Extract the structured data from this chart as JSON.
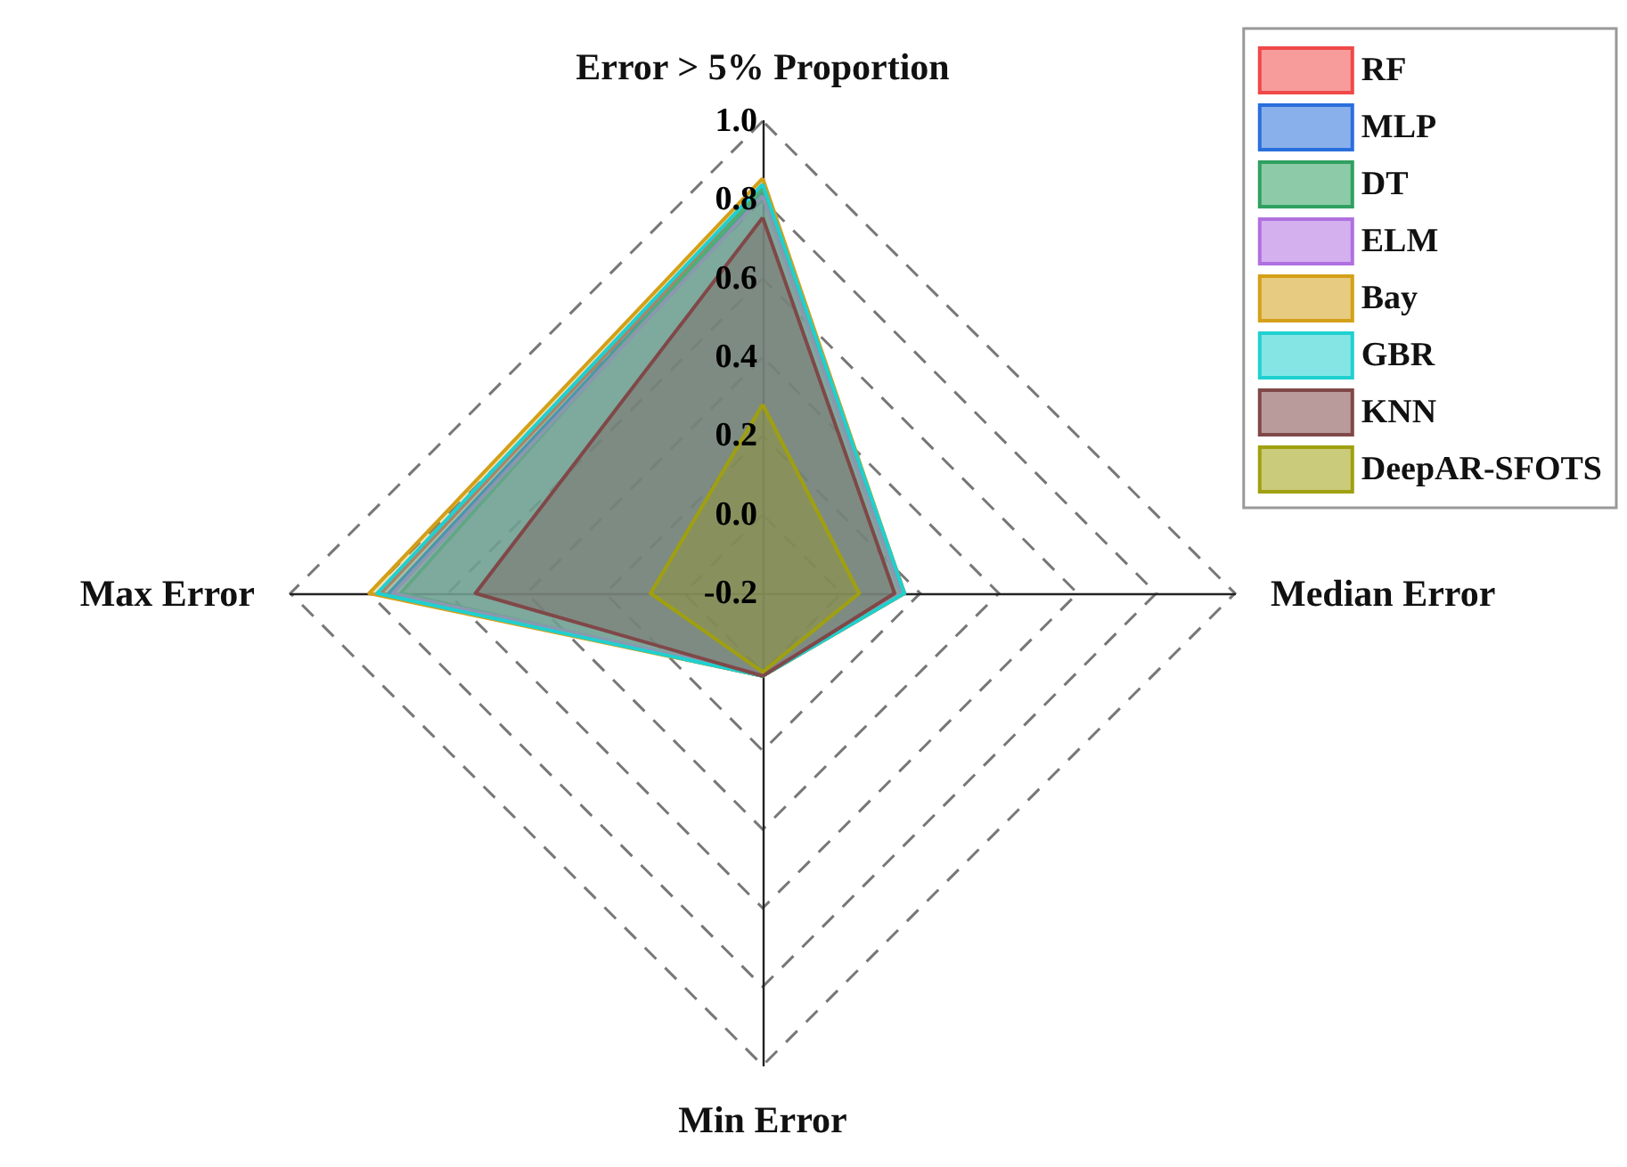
{
  "chart_data": {
    "type": "radar",
    "categories": [
      "Error > 5% Proportion",
      "Median Error",
      "Min Error",
      "Max Error"
    ],
    "ylim": [
      -0.2,
      1.0
    ],
    "yticks": [
      -0.2,
      {
        "value": 0,
        "label": "0.0"
      },
      0.2,
      0.4,
      0.6,
      0.8,
      {
        "value": 1,
        "label": "1.0"
      }
    ],
    "grid": true,
    "legend": "top right",
    "marker": "none",
    "series": [
      {
        "name": "RF",
        "color": "#f04848",
        "values": [
          0.83,
          0.16,
          0.01,
          0.77
        ]
      },
      {
        "name": "MLP",
        "color": "#2a6fdc",
        "values": [
          0.82,
          0.155,
          0.01,
          0.75
        ]
      },
      {
        "name": "DT",
        "color": "#30a060",
        "values": [
          0.83,
          0.16,
          0.01,
          0.72
        ]
      },
      {
        "name": "ELM",
        "color": "#b070e0",
        "values": [
          0.81,
          0.15,
          0.005,
          0.74
        ]
      },
      {
        "name": "Bay",
        "color": "#d4a017",
        "values": [
          0.855,
          0.16,
          0.01,
          0.8
        ]
      },
      {
        "name": "GBR",
        "color": "#20d0d0",
        "values": [
          0.84,
          0.16,
          0.01,
          0.78
        ]
      },
      {
        "name": "KNN",
        "color": "#804848",
        "values": [
          0.755,
          0.135,
          0.01,
          0.53
        ]
      },
      {
        "name": "DeepAR-SFOTS",
        "color": "#a0a010",
        "values": [
          0.28,
          0.045,
          0.0,
          0.085
        ]
      }
    ]
  }
}
